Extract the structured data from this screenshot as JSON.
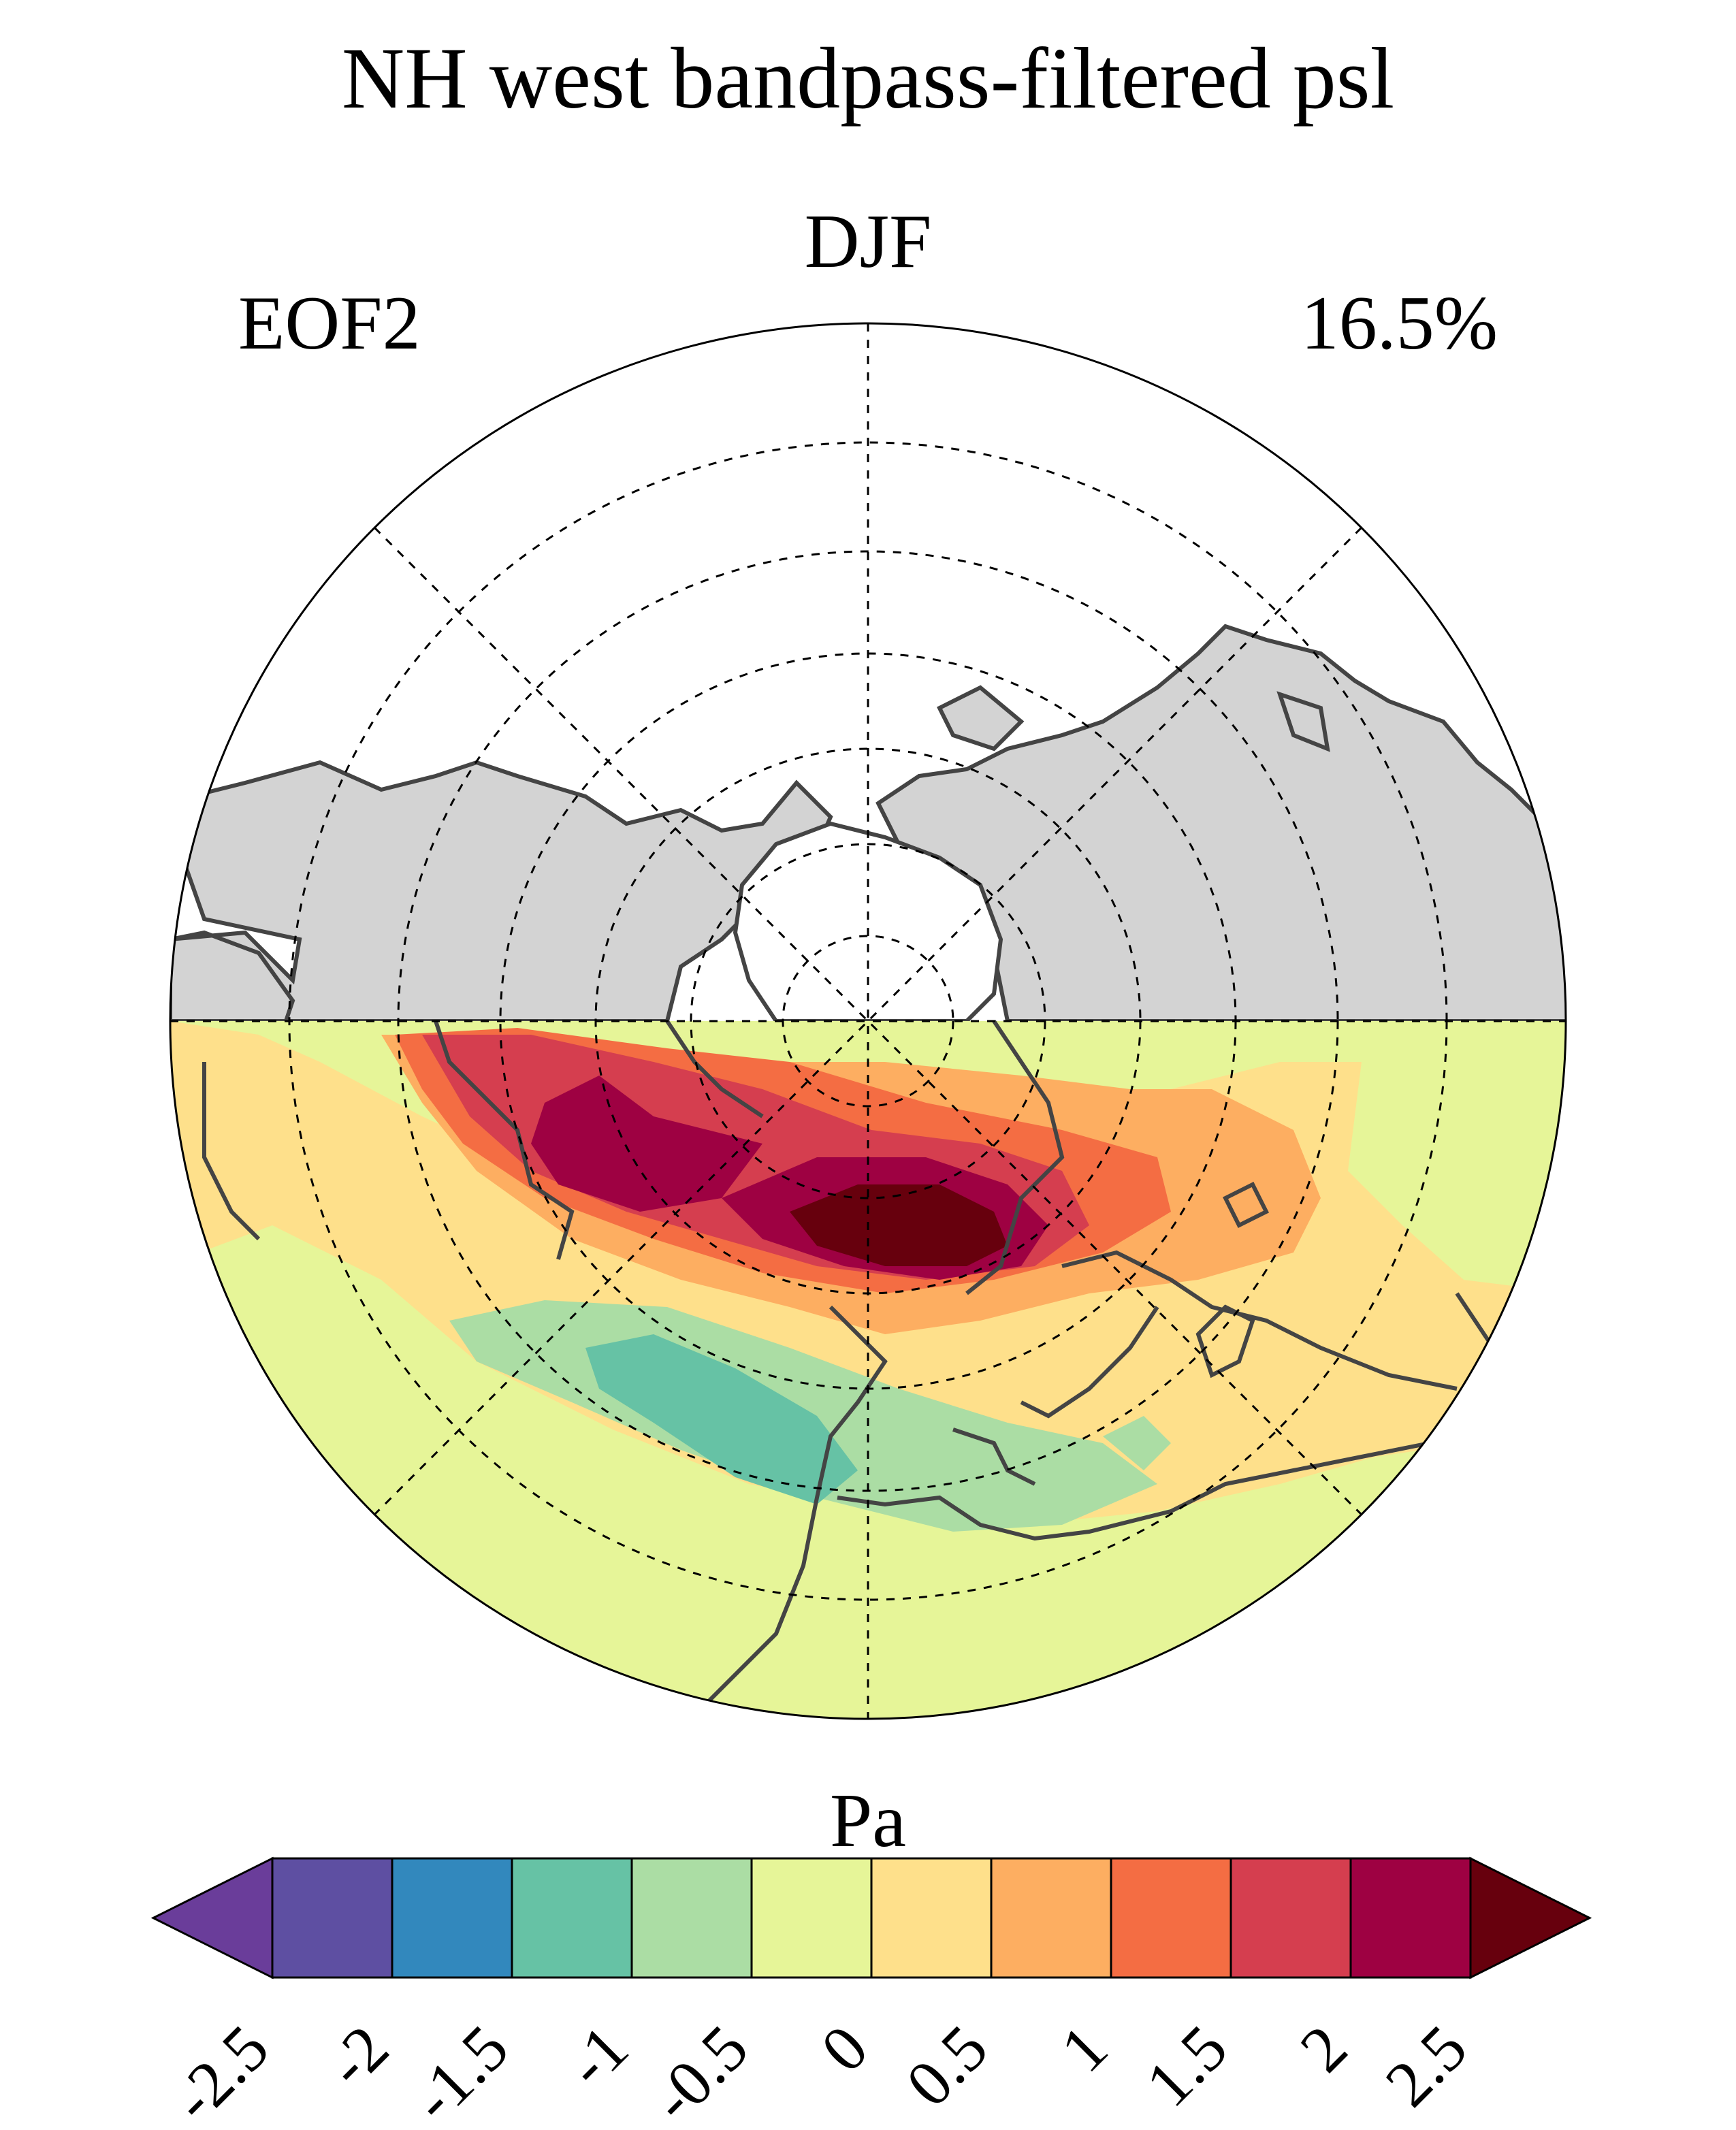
{
  "title": "NH west bandpass-filtered psl",
  "season": "DJF",
  "mode_label": "EOF2",
  "variance_explained": "16.5%",
  "colorbar": {
    "unit": "Pa",
    "ticks": [
      "-2.5",
      "-2",
      "-1.5",
      "-1",
      "-0.5",
      "0",
      "0.5",
      "1",
      "1.5",
      "2",
      "2.5"
    ],
    "tick_values": [
      -2.5,
      -2,
      -1.5,
      -1,
      -0.5,
      0,
      0.5,
      1,
      1.5,
      2,
      2.5
    ],
    "colors": [
      "#6a3d9a",
      "#5e4fa2",
      "#3288bd",
      "#66c2a5",
      "#abdda4",
      "#e6f598",
      "#fee08b",
      "#fdae61",
      "#f46d43",
      "#d53e4f",
      "#9e0142",
      "#67000d"
    ],
    "extend": "both"
  },
  "map": {
    "projection": "north polar stereographic",
    "masked_colour": "#d3d3d3",
    "coastline_colour": "#444444"
  }
}
